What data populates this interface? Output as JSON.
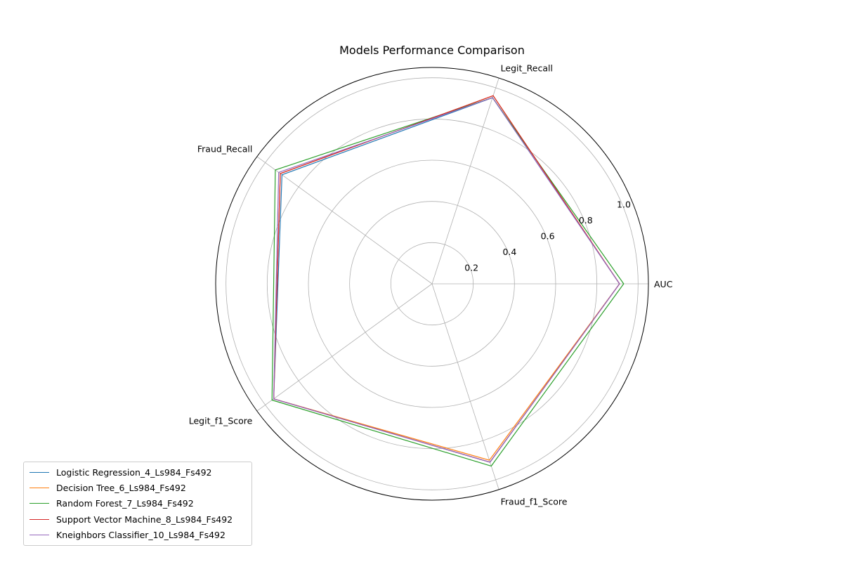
{
  "chart_data": {
    "type": "radar",
    "title": "Models Performance Comparison",
    "axes": [
      "AUC",
      "Legit_Recall",
      "Fraud_Recall",
      "Legit_f1_Score",
      "Fraud_f1_Score"
    ],
    "rlim": [
      0,
      1.05
    ],
    "rticks": [
      0.2,
      0.4,
      0.6,
      0.8,
      1.0
    ],
    "rtick_labels": [
      "0.2",
      "0.4",
      "0.6",
      "0.8",
      "1.0"
    ],
    "grid": true,
    "legend_position": "bottom-left",
    "series": [
      {
        "name": "Logistic Regression_4_Ls984_Fs492",
        "color": "#1f77b4",
        "values": [
          0.91,
          0.95,
          0.9,
          0.95,
          0.91
        ]
      },
      {
        "name": "Decision Tree_6_Ls984_Fs492",
        "color": "#ff7f0e",
        "values": [
          0.91,
          0.96,
          0.91,
          0.95,
          0.9
        ]
      },
      {
        "name": "Random Forest_7_Ls984_Fs492",
        "color": "#2ca02c",
        "values": [
          0.93,
          0.95,
          0.94,
          0.96,
          0.93
        ]
      },
      {
        "name": "Support Vector Machine_8_Ls984_Fs492",
        "color": "#d62728",
        "values": [
          0.91,
          0.96,
          0.91,
          0.95,
          0.91
        ]
      },
      {
        "name": "Kneighbors Classifier_10_Ls984_Fs492",
        "color": "#9467bd",
        "values": [
          0.91,
          0.95,
          0.92,
          0.95,
          0.91
        ]
      }
    ]
  }
}
